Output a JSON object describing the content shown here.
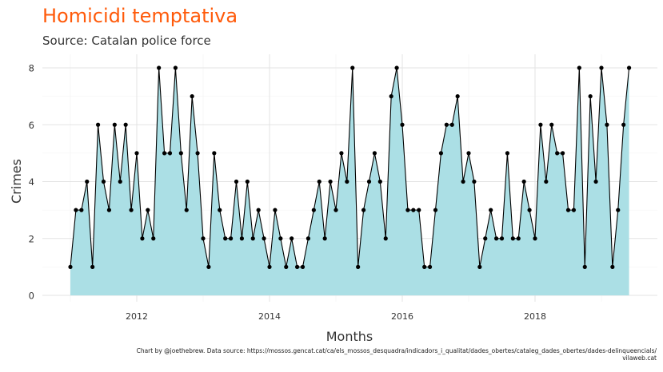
{
  "title": "Homicidi temptativa",
  "subtitle": "Source: Catalan police force",
  "caption_line1": "Chart by @joethebrew. Data source: https://mossos.gencat.cat/ca/els_mossos_desquadra/indicadors_i_qualitat/dades_obertes/cataleg_dades_obertes/dades-delinqueencials/",
  "caption_line2": "vilaweb.cat",
  "chart_data": {
    "type": "area",
    "xlabel": "Months",
    "ylabel": "Crimes",
    "x_start": "2011-01",
    "x_ticks": [
      2012,
      2014,
      2016,
      2018
    ],
    "y_ticks": [
      0,
      2,
      4,
      6,
      8
    ],
    "ylim": [
      0,
      8.4
    ],
    "grid": true,
    "fill_color": "#abdfe5",
    "line_color": "#000000",
    "values": [
      1,
      3,
      3,
      4,
      1,
      6,
      4,
      3,
      6,
      4,
      6,
      3,
      5,
      2,
      3,
      2,
      8,
      5,
      5,
      8,
      5,
      3,
      7,
      5,
      2,
      1,
      5,
      3,
      2,
      2,
      4,
      2,
      4,
      2,
      3,
      2,
      1,
      3,
      2,
      1,
      2,
      1,
      1,
      2,
      3,
      4,
      2,
      4,
      3,
      5,
      4,
      8,
      1,
      3,
      4,
      5,
      4,
      2,
      7,
      8,
      6,
      3,
      3,
      3,
      1,
      1,
      3,
      5,
      6,
      6,
      7,
      4,
      5,
      4,
      1,
      2,
      3,
      2,
      2,
      5,
      2,
      2,
      4,
      3,
      2,
      6,
      4,
      6,
      5,
      5,
      3,
      3,
      8,
      1,
      7,
      4,
      8,
      6,
      1,
      3,
      6,
      8
    ]
  }
}
